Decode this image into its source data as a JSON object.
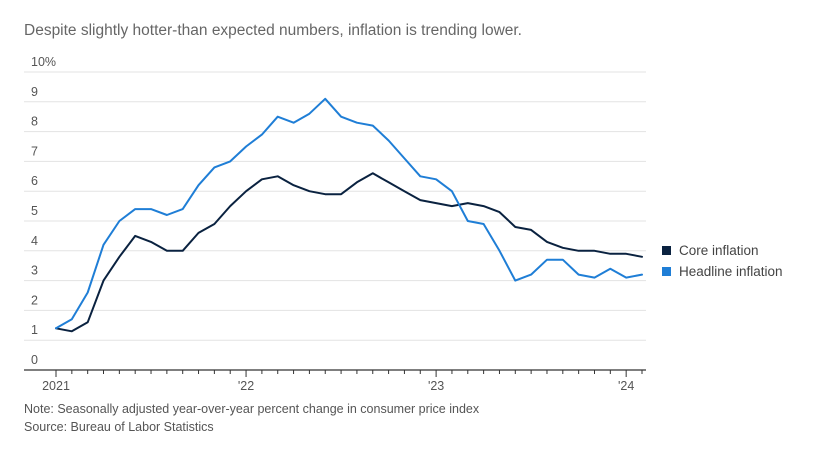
{
  "subtitle": "Despite slightly hotter-than expected numbers, inflation is trending lower.",
  "note": "Note: Seasonally adjusted year-over-year percent change in consumer price index",
  "source": "Source: Bureau of Labor Statistics",
  "chart_data": {
    "type": "line",
    "title": "",
    "subtitle": "Despite slightly hotter-than expected numbers, inflation is trending lower.",
    "xlabel": "",
    "ylabel": "",
    "ylim": [
      0,
      10
    ],
    "yticks": [
      0,
      1,
      2,
      3,
      4,
      5,
      6,
      7,
      8,
      9,
      10
    ],
    "ytick_labels": [
      "0",
      "1",
      "2",
      "3",
      "4",
      "5",
      "6",
      "7",
      "8",
      "9",
      "10%"
    ],
    "xtick_labels": [
      {
        "label": "2021",
        "index": 0
      },
      {
        "label": "'22",
        "index": 12
      },
      {
        "label": "'23",
        "index": 24
      },
      {
        "label": "'24",
        "index": 36
      }
    ],
    "grid": true,
    "legend_position": "right",
    "x": [
      "Jan 2021",
      "Feb 2021",
      "Mar 2021",
      "Apr 2021",
      "May 2021",
      "Jun 2021",
      "Jul 2021",
      "Aug 2021",
      "Sep 2021",
      "Oct 2021",
      "Nov 2021",
      "Dec 2021",
      "Jan 2022",
      "Feb 2022",
      "Mar 2022",
      "Apr 2022",
      "May 2022",
      "Jun 2022",
      "Jul 2022",
      "Aug 2022",
      "Sep 2022",
      "Oct 2022",
      "Nov 2022",
      "Dec 2022",
      "Jan 2023",
      "Feb 2023",
      "Mar 2023",
      "Apr 2023",
      "May 2023",
      "Jun 2023",
      "Jul 2023",
      "Aug 2023",
      "Sep 2023",
      "Oct 2023",
      "Nov 2023",
      "Dec 2023",
      "Jan 2024",
      "Feb 2024"
    ],
    "series": [
      {
        "name": "Core inflation",
        "color": "#0a2240",
        "values": [
          1.4,
          1.3,
          1.6,
          3.0,
          3.8,
          4.5,
          4.3,
          4.0,
          4.0,
          4.6,
          4.9,
          5.5,
          6.0,
          6.4,
          6.5,
          6.2,
          6.0,
          5.9,
          5.9,
          6.3,
          6.6,
          6.3,
          6.0,
          5.7,
          5.6,
          5.5,
          5.6,
          5.5,
          5.3,
          4.8,
          4.7,
          4.3,
          4.1,
          4.0,
          4.0,
          3.9,
          3.9,
          3.8
        ]
      },
      {
        "name": "Headline inflation",
        "color": "#1f7ed6",
        "values": [
          1.4,
          1.7,
          2.6,
          4.2,
          5.0,
          5.4,
          5.4,
          5.2,
          5.4,
          6.2,
          6.8,
          7.0,
          7.5,
          7.9,
          8.5,
          8.3,
          8.6,
          9.1,
          8.5,
          8.3,
          8.2,
          7.7,
          7.1,
          6.5,
          6.4,
          6.0,
          5.0,
          4.9,
          4.0,
          3.0,
          3.2,
          3.7,
          3.7,
          3.2,
          3.1,
          3.4,
          3.1,
          3.2
        ]
      }
    ]
  }
}
